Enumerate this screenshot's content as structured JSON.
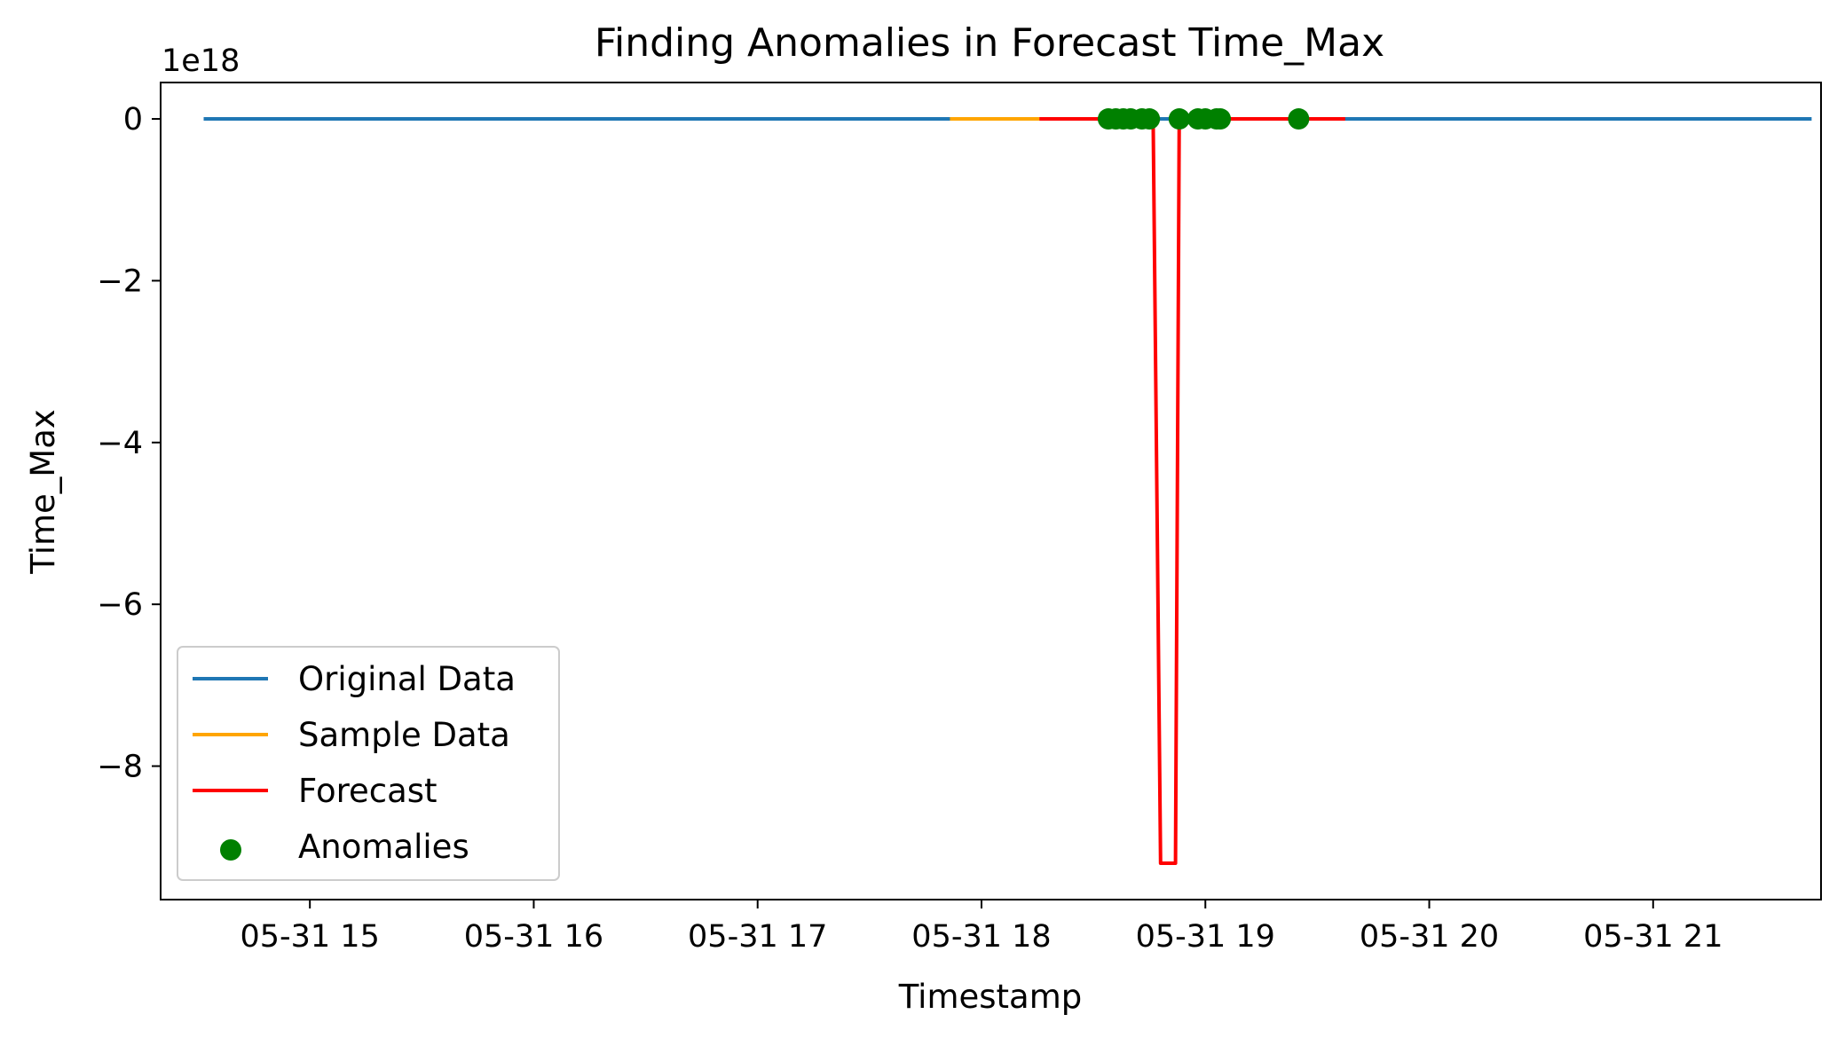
{
  "chart_data": {
    "type": "line",
    "title": "Finding Anomalies in Forecast Time_Max",
    "xlabel": "Timestamp",
    "ylabel": "Time_Max",
    "y_offset_label": "1e18",
    "y_scale": 1e+18,
    "xlim": [
      "05-31 14:20",
      "05-31 21:45"
    ],
    "ylim": [
      -9.65,
      0.45
    ],
    "x_ticks": [
      {
        "label": "05-31 15",
        "t": "05-31 15:00"
      },
      {
        "label": "05-31 16",
        "t": "05-31 16:00"
      },
      {
        "label": "05-31 17",
        "t": "05-31 17:00"
      },
      {
        "label": "05-31 18",
        "t": "05-31 18:00"
      },
      {
        "label": "05-31 19",
        "t": "05-31 19:00"
      },
      {
        "label": "05-31 20",
        "t": "05-31 20:00"
      },
      {
        "label": "05-31 21",
        "t": "05-31 21:00"
      }
    ],
    "y_ticks": [
      {
        "label": "0",
        "v": 0
      },
      {
        "label": "−2",
        "v": -2
      },
      {
        "label": "−4",
        "v": -4
      },
      {
        "label": "−6",
        "v": -6
      },
      {
        "label": "−8",
        "v": -8
      }
    ],
    "grid": false,
    "legend_position": "lower-left",
    "series": [
      {
        "name": "Original Data",
        "kind": "line",
        "color": "#1f77b4",
        "points": [
          [
            "05-31 14:32",
            0
          ],
          [
            "05-31 21:42",
            0
          ]
        ]
      },
      {
        "name": "Sample Data",
        "kind": "line",
        "color": "#ffa500",
        "points": [
          [
            "05-31 17:52",
            0
          ],
          [
            "05-31 18:16",
            0
          ]
        ]
      },
      {
        "name": "Forecast",
        "kind": "line",
        "color": "#ff0000",
        "points": [
          [
            "05-31 18:16",
            0
          ],
          [
            "05-31 18:46",
            0
          ],
          [
            "05-31 18:48",
            -9.2
          ],
          [
            "05-31 18:52",
            -9.2
          ],
          [
            "05-31 18:53",
            0
          ],
          [
            "05-31 19:37",
            0
          ]
        ]
      },
      {
        "name": "Anomalies",
        "kind": "scatter",
        "color": "#008000",
        "points": [
          [
            "05-31 18:34",
            0
          ],
          [
            "05-31 18:36",
            0
          ],
          [
            "05-31 18:38",
            0
          ],
          [
            "05-31 18:40",
            0
          ],
          [
            "05-31 18:43",
            0
          ],
          [
            "05-31 18:45",
            0
          ],
          [
            "05-31 18:53",
            0
          ],
          [
            "05-31 18:58",
            0
          ],
          [
            "05-31 19:00",
            0
          ],
          [
            "05-31 19:03",
            0
          ],
          [
            "05-31 19:04",
            0
          ],
          [
            "05-31 19:25",
            0
          ]
        ]
      }
    ]
  }
}
